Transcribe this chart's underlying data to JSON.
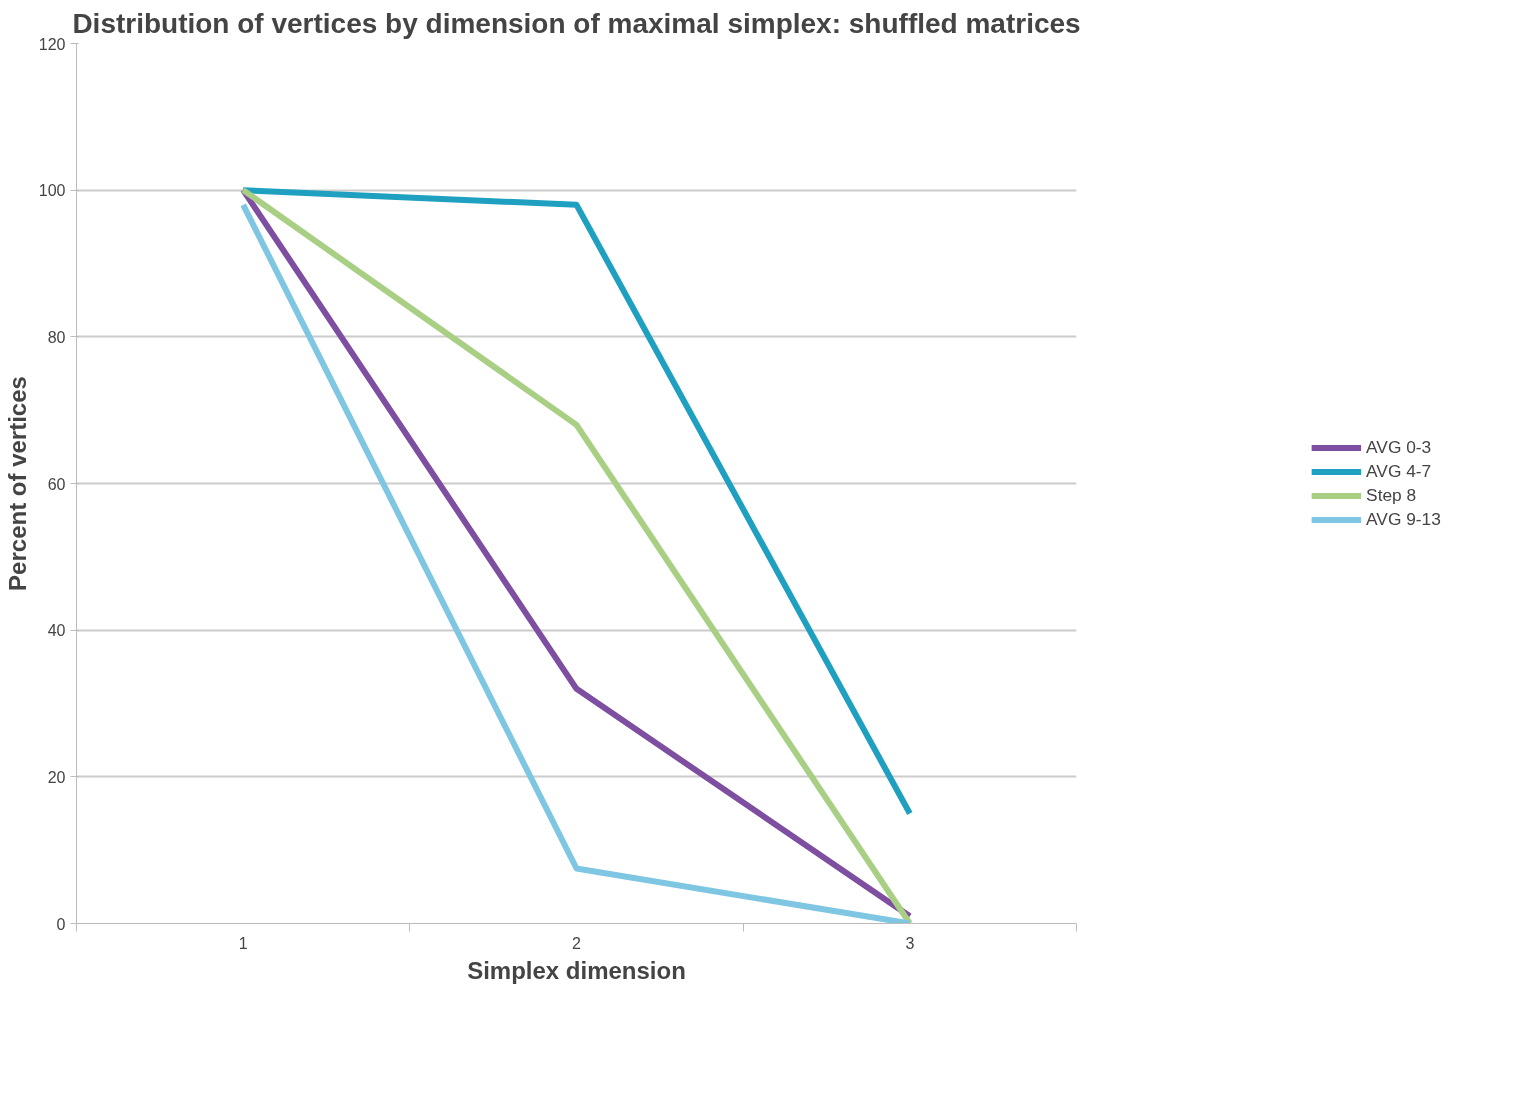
{
  "chart_data": {
    "type": "line",
    "title": "Distribution of vertices by dimension of maximal simplex: shuffled matrices",
    "xlabel": "Simplex dimension",
    "ylabel": "Percent of vertices",
    "categories": [
      "1",
      "2",
      "3"
    ],
    "series": [
      {
        "name": "AVG 0-3",
        "color": "#7e4fa0",
        "values": [
          100,
          32,
          1
        ]
      },
      {
        "name": "AVG 4-7",
        "color": "#1fa0c0",
        "values": [
          100,
          98,
          15
        ]
      },
      {
        "name": "Step 8",
        "color": "#a9cf84",
        "values": [
          100,
          68,
          0
        ]
      },
      {
        "name": "AVG 9-13",
        "color": "#7fc6e2",
        "values": [
          98,
          7.5,
          0
        ]
      }
    ],
    "ylim": [
      0,
      120
    ],
    "yticks": [
      0,
      20,
      40,
      60,
      80,
      100,
      120
    ],
    "grid": "y",
    "legend": "right",
    "marker": "none",
    "line_style": "solid"
  }
}
